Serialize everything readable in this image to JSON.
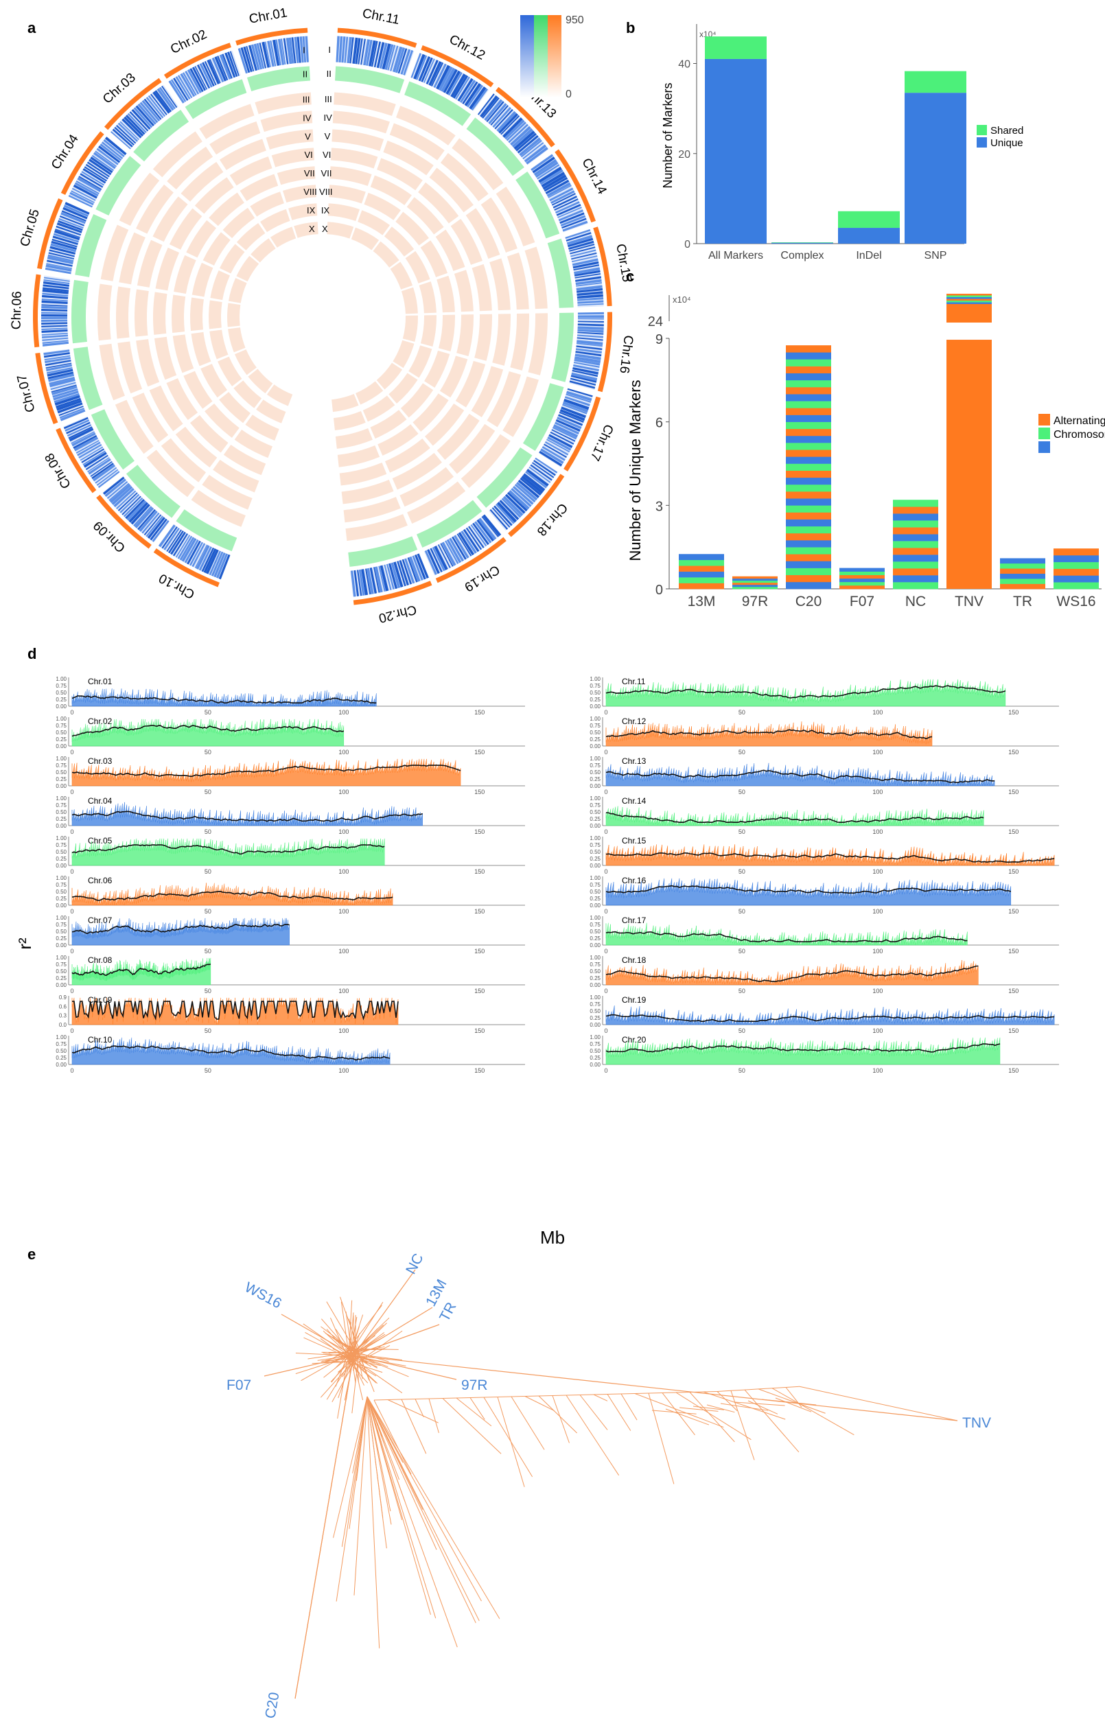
{
  "panel_labels": [
    "a",
    "b",
    "c",
    "d",
    "e"
  ],
  "colors": {
    "blue": "#3a7de0",
    "green": "#4cf07a",
    "orange": "#ff7a1f",
    "light_orange": "#fbe3d4",
    "light_green": "#a6f0b8",
    "black": "#111111",
    "axis": "#888888"
  },
  "panel_a": {
    "chromosomes": [
      "Chr.01",
      "Chr.02",
      "Chr.03",
      "Chr.04",
      "Chr.05",
      "Chr.06",
      "Chr.07",
      "Chr.08",
      "Chr.09",
      "Chr.10",
      "Chr.11",
      "Chr.12",
      "Chr.13",
      "Chr.14",
      "Chr.15",
      "Chr.16",
      "Chr.17",
      "Chr.18",
      "Chr.19",
      "Chr.20"
    ],
    "tracks": [
      "I",
      "II",
      "III",
      "IV",
      "V",
      "VI",
      "VII",
      "VIII",
      "IX",
      "X"
    ],
    "scale_max": "950",
    "scale_min": "0"
  },
  "chart_data": [
    {
      "panel": "b",
      "type": "bar",
      "categories": [
        "All Markers",
        "Complex",
        "InDel",
        "SNP"
      ],
      "series": [
        {
          "name": "Unique",
          "values": [
            41,
            0.2,
            3.5,
            33.5
          ]
        },
        {
          "name": "Shared",
          "values": [
            5,
            0.1,
            3.7,
            4.8
          ]
        }
      ],
      "ylabel": "Number of Markers",
      "ylim": [
        0,
        48
      ],
      "yticks": [
        0,
        20,
        40
      ],
      "multiplier": "x10⁴",
      "legend_position": "right"
    },
    {
      "panel": "c",
      "type": "bar",
      "categories": [
        "13M",
        "97R",
        "C20",
        "F07",
        "NC",
        "TNV",
        "TR",
        "WS16"
      ],
      "totals": [
        1.25,
        0.45,
        8.75,
        0.75,
        3.2,
        25.8,
        1.1,
        1.45
      ],
      "series_names": [
        "Alternating",
        "Chromosomes"
      ],
      "ylabel": "Number of Unique Markers",
      "ylim": [
        0,
        9
      ],
      "yticks": [
        0,
        3,
        6,
        9
      ],
      "axis_break_label": "24",
      "multiplier": "x10⁴",
      "legend_position": "right"
    },
    {
      "panel": "d",
      "type": "line",
      "ylabel": "r²",
      "xlabel": "Mb",
      "xticks": [
        0,
        50,
        100,
        150
      ],
      "yticks": [
        "0.00",
        "0.25",
        "0.50",
        "0.75",
        "1.00"
      ],
      "chr09_yticks": [
        "0.0",
        "0.3",
        "0.6",
        "0.9"
      ],
      "panels": [
        {
          "name": "Chr.01",
          "length": 112,
          "color": "blue"
        },
        {
          "name": "Chr.02",
          "length": 100,
          "color": "green"
        },
        {
          "name": "Chr.03",
          "length": 143,
          "color": "orange"
        },
        {
          "name": "Chr.04",
          "length": 129,
          "color": "blue"
        },
        {
          "name": "Chr.05",
          "length": 115,
          "color": "green"
        },
        {
          "name": "Chr.06",
          "length": 118,
          "color": "orange"
        },
        {
          "name": "Chr.07",
          "length": 80,
          "color": "blue"
        },
        {
          "name": "Chr.08",
          "length": 51,
          "color": "green"
        },
        {
          "name": "Chr.09",
          "length": 120,
          "color": "orange"
        },
        {
          "name": "Chr.10",
          "length": 117,
          "color": "blue"
        },
        {
          "name": "Chr.11",
          "length": 147,
          "color": "green"
        },
        {
          "name": "Chr.12",
          "length": 120,
          "color": "orange"
        },
        {
          "name": "Chr.13",
          "length": 143,
          "color": "blue"
        },
        {
          "name": "Chr.14",
          "length": 139,
          "color": "green"
        },
        {
          "name": "Chr.15",
          "length": 165,
          "color": "orange"
        },
        {
          "name": "Chr.16",
          "length": 149,
          "color": "blue"
        },
        {
          "name": "Chr.17",
          "length": 133,
          "color": "green"
        },
        {
          "name": "Chr.18",
          "length": 137,
          "color": "orange"
        },
        {
          "name": "Chr.19",
          "length": 165,
          "color": "blue"
        },
        {
          "name": "Chr.20",
          "length": 145,
          "color": "green"
        }
      ]
    },
    {
      "panel": "e",
      "type": "tree",
      "tip_labels": [
        "NC",
        "13M",
        "TR",
        "WS16",
        "F07",
        "97R",
        "TNV",
        "C20"
      ]
    }
  ]
}
